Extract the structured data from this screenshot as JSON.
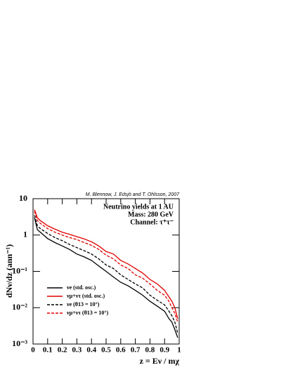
{
  "chart_data": {
    "type": "line",
    "credit": "M. Blennow, J. Edsjö and T. Ohlsson, 2007",
    "title_lines": [
      "Neutrino yields at 1 AU",
      "Mass: 280 GeV",
      "Channel: τ⁺τ⁻"
    ],
    "x_label": "z = Eν / mχ",
    "y_label": "dNν/dz (ann⁻¹)",
    "log_y": true,
    "legend": "lower left",
    "xlim": [
      0,
      1
    ],
    "xticks": [
      0,
      0.1,
      0.2,
      0.3,
      0.4,
      0.5,
      0.6,
      0.7,
      0.8,
      0.9,
      1
    ],
    "ylim": [
      0.001,
      10
    ],
    "yticks": [
      {
        "value": 0.001,
        "label": "10⁻³"
      },
      {
        "value": 0.01,
        "label": "10⁻²"
      },
      {
        "value": 0.1,
        "label": "10⁻¹"
      },
      1,
      10
    ],
    "x": [
      0.01,
      0.03,
      0.05,
      0.1,
      0.15,
      0.2,
      0.25,
      0.3,
      0.35,
      0.4,
      0.45,
      0.5,
      0.55,
      0.6,
      0.65,
      0.7,
      0.75,
      0.8,
      0.85,
      0.9,
      0.93,
      0.95,
      0.97,
      0.99
    ],
    "series": [
      {
        "name": "νe (std. osc.)",
        "color": "#000000",
        "dash": false,
        "values": [
          3,
          1.4,
          1.2,
          0.8,
          0.62,
          0.5,
          0.4,
          0.3,
          0.25,
          0.2,
          0.14,
          0.1,
          0.07,
          0.05,
          0.04,
          0.03,
          0.022,
          0.015,
          0.011,
          0.008,
          0.005,
          0.004,
          0.0025,
          0.0015
        ]
      },
      {
        "name": "νμ+ντ (std. osc.)",
        "color": "#e00000",
        "dash": false,
        "values": [
          5,
          3,
          2.5,
          1.8,
          1.45,
          1.2,
          1.05,
          0.9,
          0.78,
          0.65,
          0.5,
          0.35,
          0.3,
          0.2,
          0.16,
          0.12,
          0.09,
          0.06,
          0.045,
          0.03,
          0.02,
          0.015,
          0.01,
          0.005
        ]
      },
      {
        "name": "νe (θ13 = 10°)",
        "color": "#000000",
        "dash": true,
        "values": [
          3.5,
          1.8,
          1.5,
          1.1,
          0.85,
          0.7,
          0.55,
          0.45,
          0.37,
          0.3,
          0.22,
          0.15,
          0.12,
          0.08,
          0.06,
          0.045,
          0.035,
          0.022,
          0.016,
          0.012,
          0.008,
          0.006,
          0.004,
          0.002
        ]
      },
      {
        "name": "νμ+ντ (θ13 = 10°)",
        "color": "#e00000",
        "dash": true,
        "values": [
          4.5,
          2.5,
          2.1,
          1.5,
          1.2,
          1.0,
          0.85,
          0.75,
          0.62,
          0.52,
          0.4,
          0.28,
          0.22,
          0.15,
          0.12,
          0.08,
          0.065,
          0.045,
          0.03,
          0.022,
          0.015,
          0.01,
          0.007,
          0.004
        ]
      }
    ]
  }
}
